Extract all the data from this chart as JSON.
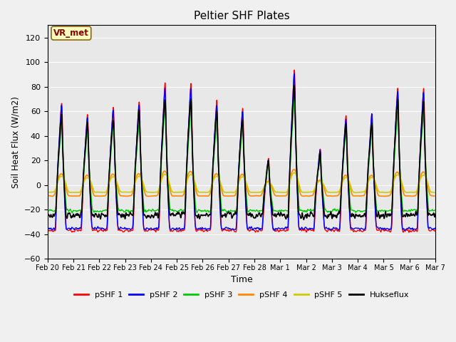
{
  "title": "Peltier SHF Plates",
  "xlabel": "Time",
  "ylabel": "Soil Heat Flux (W/m2)",
  "ylim": [
    -60,
    130
  ],
  "yticks": [
    -60,
    -40,
    -20,
    0,
    20,
    40,
    60,
    80,
    100,
    120
  ],
  "background_color": "#f0f0f0",
  "plot_bg": "#e8e8e8",
  "annotation_text": "VR_met",
  "annotation_color": "#8B0000",
  "annotation_bg": "#ffffc0",
  "series_colors": [
    "#ff0000",
    "#0000ff",
    "#00cc00",
    "#ff8800",
    "#cccc00",
    "#000000"
  ],
  "series_labels": [
    "pSHF 1",
    "pSHF 2",
    "pSHF 3",
    "pSHF 4",
    "pSHF 5",
    "Hukseflux"
  ],
  "n_days": 15,
  "n_pts_per_day": 144,
  "x_tick_labels": [
    "Feb 20",
    "Feb 21",
    "Feb 22",
    "Feb 23",
    "Feb 24",
    "Feb 25",
    "Feb 26",
    "Feb 27",
    "Feb 28",
    "Mar 1",
    "Mar 2",
    "Mar 3",
    "Mar 4",
    "Mar 5",
    "Mar 6",
    "Mar 7"
  ],
  "day_peak_amps": [
    74,
    64,
    71,
    76,
    91,
    91,
    75,
    70,
    25,
    103,
    35,
    64,
    65,
    87,
    87
  ],
  "figsize": [
    6.4,
    4.8
  ],
  "dpi": 100
}
